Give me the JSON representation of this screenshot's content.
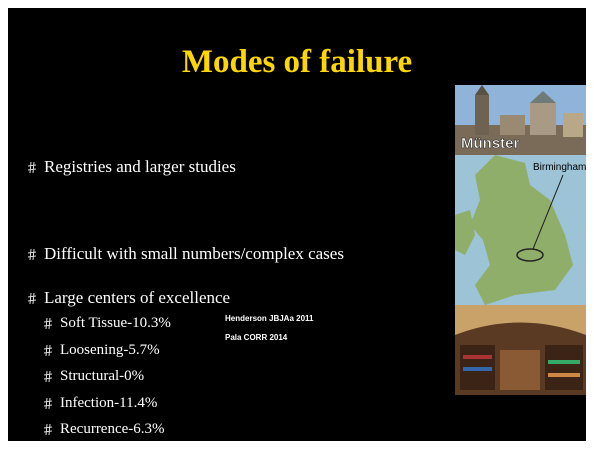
{
  "title": "Modes of failure",
  "bullets": [
    {
      "text": "Registries and larger studies"
    },
    {
      "text": "Difficult with small numbers/complex cases"
    },
    {
      "text": "Large centers of excellence",
      "sub": [
        "Soft Tissue-10.3%",
        "Loosening-5.7%",
        "Structural-0%",
        "Infection-11.4%",
        "Recurrence-6.3%"
      ]
    }
  ],
  "references": [
    "Henderson JBJAa 2011",
    "Pala CORR 2014"
  ],
  "images": {
    "city_label": "Münster",
    "map_label": "Birmingham"
  }
}
